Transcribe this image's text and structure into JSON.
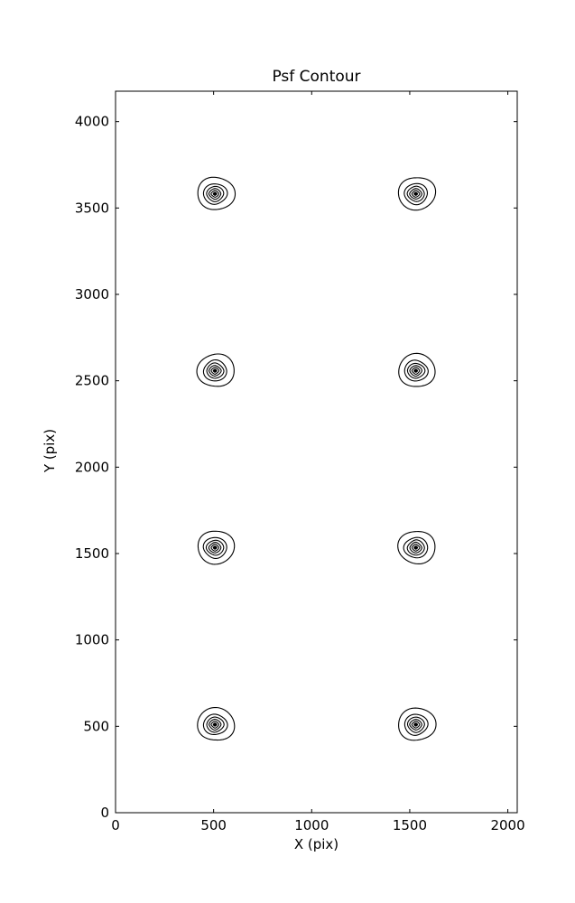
{
  "chart_data": {
    "type": "contour",
    "title": "Psf Contour",
    "xlabel": "X (pix)",
    "ylabel": "Y (pix)",
    "xlim": [
      0,
      2048
    ],
    "ylim": [
      0,
      4176
    ],
    "xticks": [
      0,
      500,
      1000,
      1500,
      2000
    ],
    "yticks": [
      0,
      500,
      1000,
      1500,
      2000,
      2500,
      3000,
      3500,
      4000
    ],
    "grid": false,
    "legend": null,
    "line_color": "#000000",
    "background_color": "#ffffff",
    "psf_centers": [
      {
        "x": 512,
        "y": 512
      },
      {
        "x": 1536,
        "y": 512
      },
      {
        "x": 512,
        "y": 1536
      },
      {
        "x": 1536,
        "y": 1536
      },
      {
        "x": 512,
        "y": 2560
      },
      {
        "x": 1536,
        "y": 2560
      },
      {
        "x": 512,
        "y": 3584
      },
      {
        "x": 1536,
        "y": 3584
      }
    ],
    "contour_levels_per_blob": 6,
    "contour_radii_data_pix": [
      94,
      60,
      44,
      31,
      20,
      8
    ]
  }
}
